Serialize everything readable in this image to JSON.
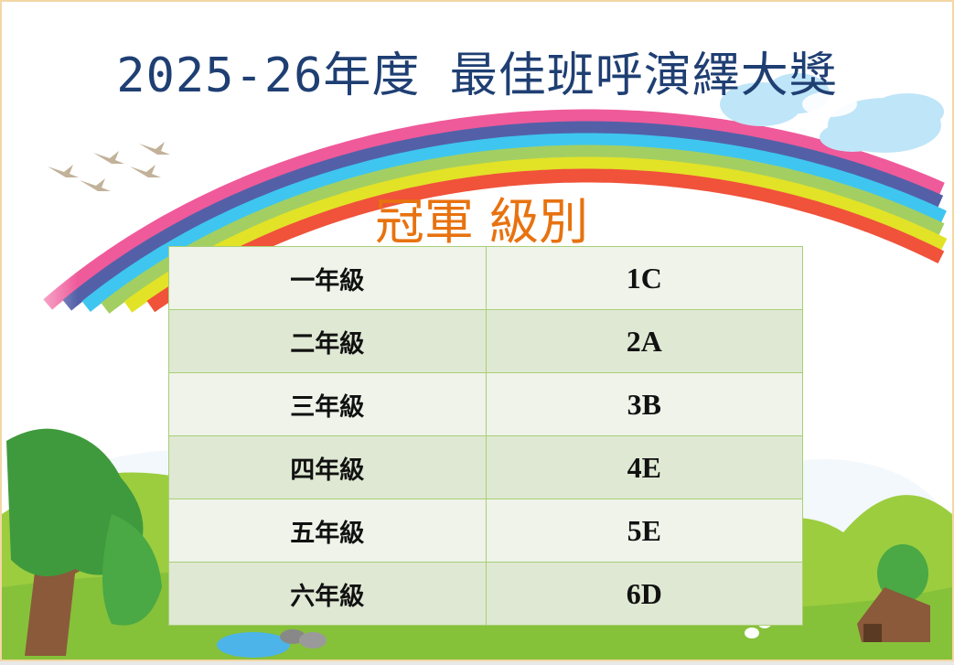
{
  "title": "2025-26年度 最佳班呼演繹大獎",
  "subtitle": "冠軍 級別",
  "table": {
    "rows": [
      {
        "grade": "一年級",
        "class": "1C"
      },
      {
        "grade": "二年級",
        "class": "2A"
      },
      {
        "grade": "三年級",
        "class": "3B"
      },
      {
        "grade": "四年級",
        "class": "4E"
      },
      {
        "grade": "五年級",
        "class": "5E"
      },
      {
        "grade": "六年級",
        "class": "6D"
      }
    ]
  },
  "colors": {
    "title": "#1f3f73",
    "subtitle": "#e8720f",
    "table_border": "#a9cf74",
    "rainbow": [
      "#ef5a9a",
      "#5360a8",
      "#3ec6f0",
      "#a3cf62",
      "#e2e227",
      "#f0523a"
    ]
  }
}
